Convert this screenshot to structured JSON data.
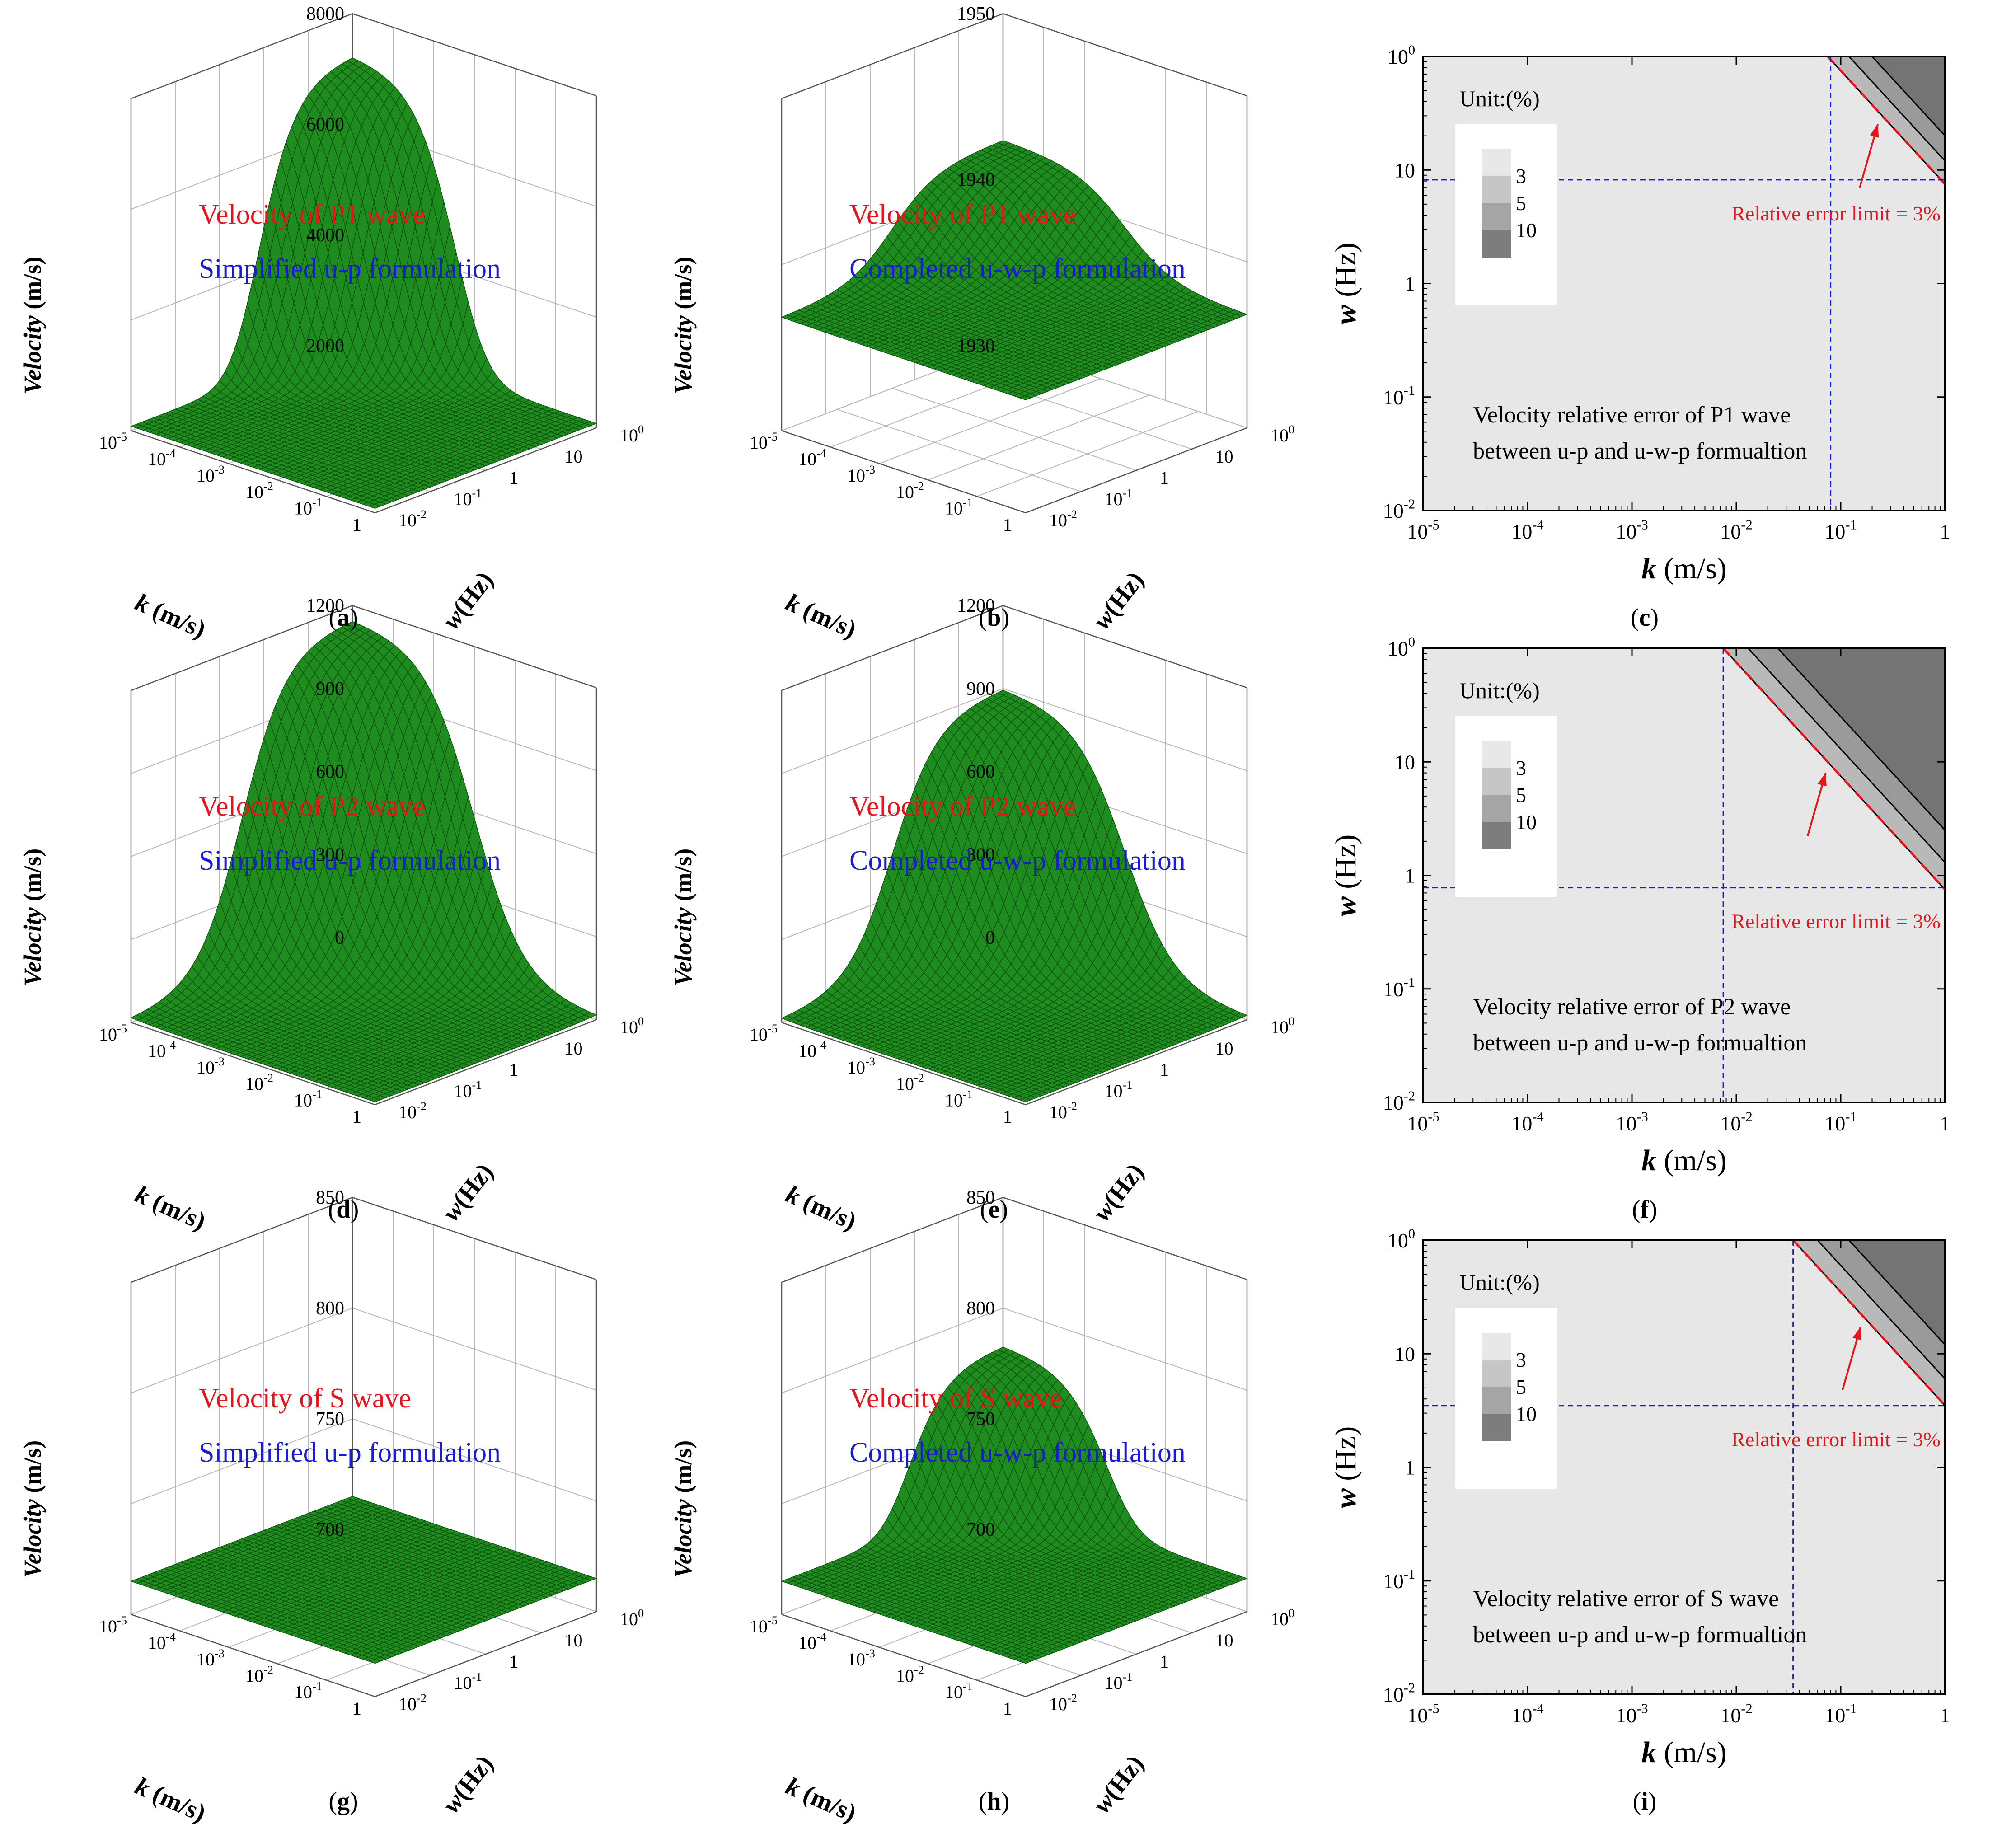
{
  "figure": {
    "surface_color": "#1f8c1f",
    "surface_line_color": "#0b4d0b",
    "title_color": "#e8131b",
    "subtitle_color": "#1b1bd6",
    "guide_color": "#1b1bd6",
    "limit_color": "#e8131b"
  },
  "chart_data": [
    {
      "type": "surface3d",
      "panel": "a",
      "label": "(a)",
      "title": "Velocity of P1 wave",
      "subtitle": "Simplified u-p formulation",
      "zlabel": "Velocity (m/s)",
      "xlabel": "k (m/s)",
      "ylabel": "w(Hz)",
      "x_var": "k",
      "x_unit": " (m/s)",
      "y_var": "w",
      "y_unit": "(Hz)",
      "zlim": [
        2000,
        8000
      ],
      "z_ticks": [
        "8000",
        "6000",
        "4000",
        "2000"
      ],
      "k_ticks": [
        "10-5",
        "10-4",
        "10-3",
        "10-2",
        "10-1",
        "1"
      ],
      "w_ticks": [
        "10-2",
        "10-1",
        "1",
        "10",
        "100"
      ],
      "base_value": 2080,
      "peak_value": 7250,
      "plateau": false
    },
    {
      "type": "surface3d",
      "panel": "b",
      "label": "(b)",
      "title": "Velocity of P1 wave",
      "subtitle": "Completed u-w-p formulation",
      "zlabel": "Velocity (m/s)",
      "xlabel": "k (m/s)",
      "ylabel": "w(Hz)",
      "x_var": "k",
      "x_unit": " (m/s)",
      "y_var": "w",
      "y_unit": "(Hz)",
      "zlim": [
        1930,
        1950
      ],
      "z_ticks": [
        "1950",
        "1940",
        "1930"
      ],
      "k_ticks": [
        "10-5",
        "10-4",
        "10-3",
        "10-2",
        "10-1",
        "1"
      ],
      "w_ticks": [
        "10-2",
        "10-1",
        "1",
        "10",
        "100"
      ],
      "base_value": 1936.8,
      "peak_value": 1942.4,
      "plateau": true
    },
    {
      "type": "contour",
      "panel": "c",
      "label": "(c)",
      "title": "Velocity relative error of P1 wave",
      "subtitle": "between u-p and u-w-p formualtion",
      "legend_title": "Unit:(%)",
      "legend_levels": [
        "3",
        "5",
        "10"
      ],
      "xlabel": "k (m/s)",
      "ylabel": "w (Hz)",
      "x_var": "k",
      "x_unit": " (m/s)",
      "y_var": "w",
      "y_unit": " (Hz)",
      "xlim": [
        1e-05,
        1
      ],
      "ylim": [
        0.01,
        100
      ],
      "x_ticks": [
        "10-5",
        "10-4",
        "10-3",
        "10-2",
        "10-1",
        "1"
      ],
      "y_ticks": [
        "100",
        "10",
        "1",
        "10-1",
        "10-2"
      ],
      "error_3pct_product": 7.5,
      "error_5pct_product": 12,
      "error_10pct_product": 20,
      "guide_k": 0.08,
      "guide_w": 8.2,
      "annotation": "Relative error limit = 3%"
    },
    {
      "type": "surface3d",
      "panel": "d",
      "label": "(d)",
      "title": "Velocity of P2 wave",
      "subtitle": "Simplified u-p formulation",
      "zlabel": "Velocity (m/s)",
      "xlabel": "k (m/s)",
      "ylabel": "w(Hz)",
      "x_var": "k",
      "x_unit": " (m/s)",
      "y_var": "w",
      "y_unit": "(Hz)",
      "zlim": [
        0,
        1200
      ],
      "z_ticks": [
        "1200",
        "900",
        "600",
        "300",
        "0"
      ],
      "k_ticks": [
        "10-5",
        "10-4",
        "10-3",
        "10-2",
        "10-1",
        "1"
      ],
      "w_ticks": [
        "10-2",
        "10-1",
        "1",
        "10",
        "100"
      ],
      "base_value": 10,
      "peak_value": 1150,
      "plateau": true
    },
    {
      "type": "surface3d",
      "panel": "e",
      "label": "(e)",
      "title": "Velocity of P2 wave",
      "subtitle": "Completed u-w-p formulation",
      "zlabel": "Velocity (m/s)",
      "xlabel": "k (m/s)",
      "ylabel": "w(Hz)",
      "x_var": "k",
      "x_unit": " (m/s)",
      "y_var": "w",
      "y_unit": "(Hz)",
      "zlim": [
        0,
        1200
      ],
      "z_ticks": [
        "1200",
        "900",
        "600",
        "300",
        "0"
      ],
      "k_ticks": [
        "10-5",
        "10-4",
        "10-3",
        "10-2",
        "10-1",
        "1"
      ],
      "w_ticks": [
        "10-2",
        "10-1",
        "1",
        "10",
        "100"
      ],
      "base_value": 10,
      "peak_value": 900,
      "plateau": true
    },
    {
      "type": "contour",
      "panel": "f",
      "label": "(f)",
      "title": "Velocity relative error of P2 wave",
      "subtitle": "between u-p and u-w-p formualtion",
      "legend_title": "Unit:(%)",
      "legend_levels": [
        "3",
        "5",
        "10"
      ],
      "xlabel": "k (m/s)",
      "ylabel": "w (Hz)",
      "x_var": "k",
      "x_unit": " (m/s)",
      "y_var": "w",
      "y_unit": " (Hz)",
      "xlim": [
        1e-05,
        1
      ],
      "ylim": [
        0.01,
        100
      ],
      "x_ticks": [
        "10-5",
        "10-4",
        "10-3",
        "10-2",
        "10-1",
        "1"
      ],
      "y_ticks": [
        "100",
        "10",
        "1",
        "10-1",
        "10-2"
      ],
      "error_3pct_product": 0.75,
      "error_5pct_product": 1.3,
      "error_10pct_product": 2.5,
      "guide_k": 0.0075,
      "guide_w": 0.78,
      "annotation": "Relative error limit = 3%"
    },
    {
      "type": "surface3d",
      "panel": "g",
      "label": "(g)",
      "title": "Velocity of S wave",
      "subtitle": "Simplified u-p formulation",
      "zlabel": "Velocity (m/s)",
      "xlabel": "k (m/s)",
      "ylabel": "w(Hz)",
      "x_var": "k",
      "x_unit": " (m/s)",
      "y_var": "w",
      "y_unit": "(Hz)",
      "zlim": [
        700,
        850
      ],
      "z_ticks": [
        "850",
        "800",
        "750",
        "700"
      ],
      "k_ticks": [
        "10-5",
        "10-4",
        "10-3",
        "10-2",
        "10-1",
        "1"
      ],
      "w_ticks": [
        "10-2",
        "10-1",
        "1",
        "10",
        "100"
      ],
      "base_value": 715,
      "peak_value": 715,
      "plateau": false
    },
    {
      "type": "surface3d",
      "panel": "h",
      "label": "(h)",
      "title": "Velocity of S wave",
      "subtitle": "Completed u-w-p formulation",
      "zlabel": "Velocity (m/s)",
      "xlabel": "k (m/s)",
      "ylabel": "w(Hz)",
      "x_var": "k",
      "x_unit": " (m/s)",
      "y_var": "w",
      "y_unit": "(Hz)",
      "zlim": [
        700,
        850
      ],
      "z_ticks": [
        "850",
        "800",
        "750",
        "700"
      ],
      "k_ticks": [
        "10-5",
        "10-4",
        "10-3",
        "10-2",
        "10-1",
        "1"
      ],
      "w_ticks": [
        "10-2",
        "10-1",
        "1",
        "10",
        "100"
      ],
      "base_value": 715,
      "peak_value": 783,
      "plateau": false
    },
    {
      "type": "contour",
      "panel": "i",
      "label": "(i)",
      "title": "Velocity relative error of S wave",
      "subtitle": "between u-p and u-w-p formualtion",
      "legend_title": "Unit:(%)",
      "legend_levels": [
        "3",
        "5",
        "10"
      ],
      "xlabel": "k (m/s)",
      "ylabel": "w (Hz)",
      "x_var": "k",
      "x_unit": " (m/s)",
      "y_var": "w",
      "y_unit": " (Hz)",
      "xlim": [
        1e-05,
        1
      ],
      "ylim": [
        0.01,
        100
      ],
      "x_ticks": [
        "10-5",
        "10-4",
        "10-3",
        "10-2",
        "10-1",
        "1"
      ],
      "y_ticks": [
        "100",
        "10",
        "1",
        "10-1",
        "10-2"
      ],
      "error_3pct_product": 3.5,
      "error_5pct_product": 6,
      "error_10pct_product": 12,
      "guide_k": 0.035,
      "guide_w": 3.5,
      "annotation": "Relative error limit = 3%"
    }
  ]
}
